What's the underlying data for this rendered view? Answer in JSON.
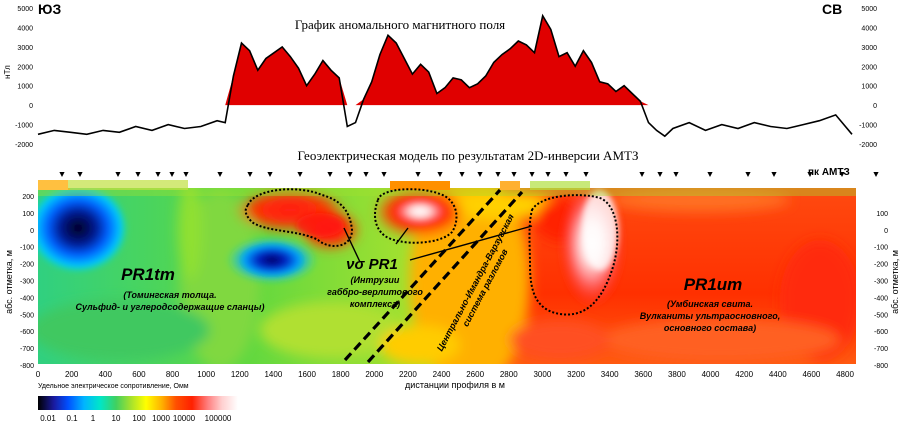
{
  "labels": {
    "sw": "ЮЗ",
    "ne": "СВ",
    "magnetic_title": "График аномального магнитного поля",
    "magnetic_unit": "нТл",
    "geo_title": "Геоэлектрическая модель по результатам 2D-инверсии АМТЗ",
    "amtz_stations": "пк АМТЗ",
    "depth_axis": "абс. отметка, м",
    "distance_axis": "дистанции профиля в м",
    "resistivity_label": "Удельное электрическое сопротивление, Омм"
  },
  "units": {
    "pr1tm": {
      "name": "PR1tm",
      "desc1": "(Томингская толща.",
      "desc2": "Сульфид- и углеродсодержащие сланцы)"
    },
    "vspr1": {
      "name": "νσ PR1",
      "desc1": "(Интрузии",
      "desc2": "габбро-верлитового",
      "desc3": "комплекса)"
    },
    "pr1um": {
      "name": "PR1um",
      "desc1": "(Умбинская свита.",
      "desc2": "Вулканиты ультраосновного,",
      "desc3": "основного состава)"
    },
    "fault": {
      "line1": "Центрально-Имандра-Варзугская",
      "line2": "система разломов"
    }
  },
  "axes": {
    "mag_left_ticks": [
      "5000",
      "4000",
      "3000",
      "2000",
      "1000",
      "0",
      "-1000",
      "-2000"
    ],
    "mag_right_ticks": [
      "5000",
      "4000",
      "3000",
      "2000",
      "1000",
      "0",
      "-1000",
      "-2000"
    ],
    "depth_left_ticks": [
      "200",
      "100",
      "0",
      "-100",
      "-200",
      "-300",
      "-400",
      "-500",
      "-600",
      "-700",
      "-800"
    ],
    "depth_right_ticks": [
      "100",
      "0",
      "-100",
      "-200",
      "-300",
      "-400",
      "-500",
      "-600",
      "-700",
      "-800"
    ],
    "distance_ticks": [
      "0",
      "200",
      "400",
      "600",
      "800",
      "1000",
      "1200",
      "1400",
      "1600",
      "1800",
      "2000",
      "2200",
      "2400",
      "2600",
      "2800",
      "3000",
      "3200",
      "3400",
      "3600",
      "3800",
      "4000",
      "4200",
      "4400",
      "4600",
      "4800"
    ]
  },
  "colorbar": {
    "ticks": [
      "0.01",
      "0.1",
      "1",
      "10",
      "100",
      "1000",
      "10000",
      "100000"
    ],
    "colors": [
      "#000000",
      "#1a1aa0",
      "#0050ff",
      "#00b4ff",
      "#00e6c8",
      "#40d060",
      "#a0e030",
      "#ffff00",
      "#ffb000",
      "#ff5000",
      "#ff2000",
      "#ff8080",
      "#ffd0d0",
      "#ffffff"
    ]
  },
  "magnetic_series": {
    "x_m": [
      0,
      100,
      200,
      300,
      400,
      500,
      600,
      700,
      800,
      900,
      1000,
      1100,
      1150,
      1200,
      1250,
      1300,
      1350,
      1400,
      1450,
      1500,
      1550,
      1600,
      1650,
      1700,
      1750,
      1800,
      1850,
      1900,
      1950,
      2000,
      2050,
      2100,
      2150,
      2200,
      2250,
      2300,
      2350,
      2400,
      2450,
      2500,
      2550,
      2600,
      2650,
      2700,
      2750,
      2800,
      2850,
      2900,
      2950,
      3000,
      3050,
      3100,
      3150,
      3200,
      3250,
      3300,
      3350,
      3400,
      3450,
      3500,
      3550,
      3600,
      3650,
      3700,
      3750,
      3800,
      3850,
      3900,
      4000,
      4100,
      4200,
      4300,
      4400,
      4500,
      4600,
      4700,
      4800,
      4900,
      5000
    ],
    "nT": [
      -1500,
      -1300,
      -1400,
      -1500,
      -1300,
      -1400,
      -1100,
      -1300,
      -1000,
      -1200,
      -1100,
      -800,
      -900,
      1500,
      3200,
      2800,
      1800,
      2400,
      2700,
      3000,
      2500,
      1900,
      1000,
      1600,
      2300,
      1800,
      1400,
      -1100,
      -900,
      300,
      1200,
      2600,
      3600,
      3200,
      2400,
      1600,
      2100,
      1700,
      600,
      900,
      1400,
      1300,
      900,
      1100,
      1500,
      2200,
      2600,
      2900,
      3300,
      3100,
      2700,
      4600,
      3900,
      2500,
      2700,
      2000,
      2800,
      2200,
      1200,
      1100,
      700,
      1000,
      600,
      200,
      -900,
      -1300,
      -1600,
      -1200,
      -900,
      -1300,
      -1000,
      -1200,
      -900,
      -1100,
      -1200,
      -1000,
      -800,
      -500,
      -1500
    ]
  }
}
